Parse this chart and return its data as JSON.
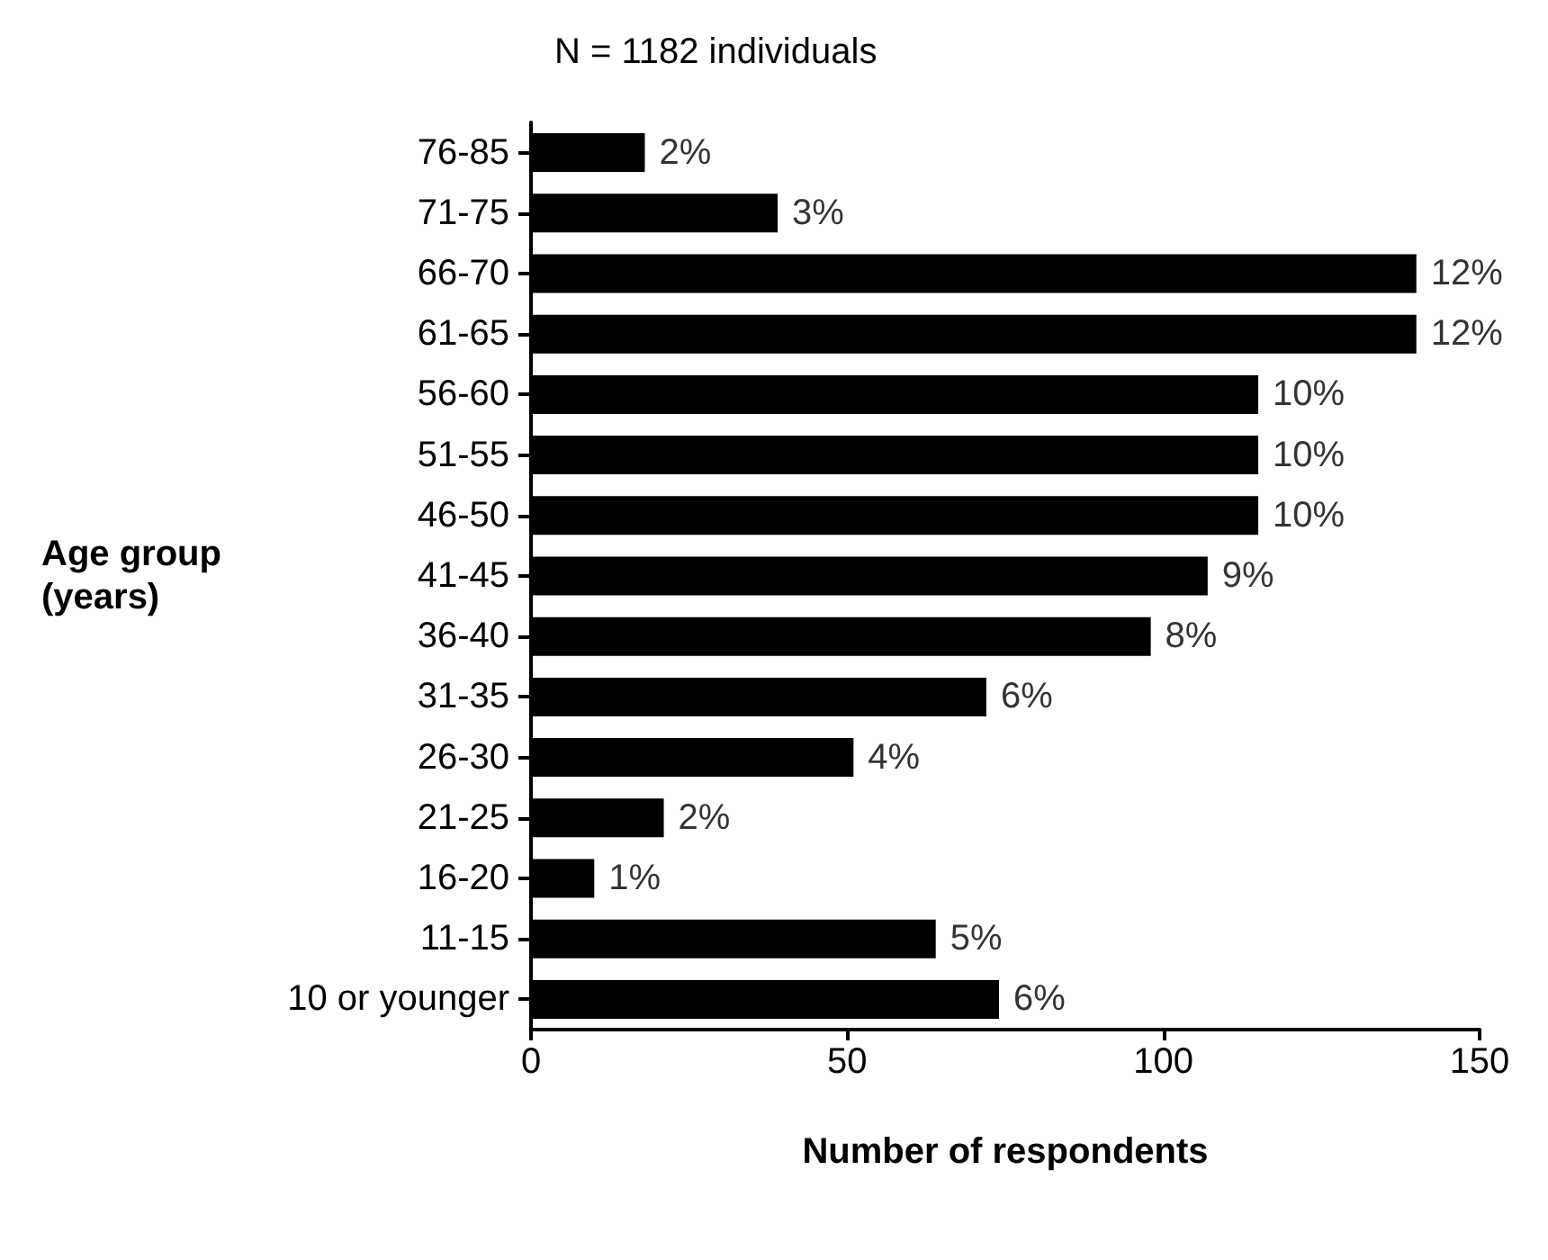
{
  "chart_data": {
    "type": "bar",
    "orientation": "horizontal",
    "title": "N = 1182 individuals",
    "xlabel": "Number of respondents",
    "ylabel": "Age group\n(years)",
    "categories": [
      "76-85",
      "71-75",
      "66-70",
      "61-65",
      "56-60",
      "51-55",
      "46-50",
      "41-45",
      "36-40",
      "31-35",
      "26-30",
      "21-25",
      "16-20",
      "11-15",
      "10 or younger"
    ],
    "values": [
      18,
      39,
      140,
      140,
      115,
      115,
      115,
      107,
      98,
      72,
      51,
      21,
      10,
      64,
      74
    ],
    "annotations": [
      {
        "text": "2%",
        "x": 18,
        "y": "76-85"
      },
      {
        "text": "3%",
        "x": 39,
        "y": "71-75"
      },
      {
        "text": "12%",
        "x": 140,
        "y": "66-70"
      },
      {
        "text": "12%",
        "x": 140,
        "y": "61-65"
      },
      {
        "text": "10%",
        "x": 115,
        "y": "56-60"
      },
      {
        "text": "10%",
        "x": 115,
        "y": "51-55"
      },
      {
        "text": "10%",
        "x": 115,
        "y": "46-50"
      },
      {
        "text": "9%",
        "x": 107,
        "y": "41-45"
      },
      {
        "text": "8%",
        "x": 98,
        "y": "36-40"
      },
      {
        "text": "6%",
        "x": 72,
        "y": "31-35"
      },
      {
        "text": "4%",
        "x": 51,
        "y": "26-30"
      },
      {
        "text": "2%",
        "x": 21,
        "y": "21-25"
      },
      {
        "text": "1%",
        "x": 10,
        "y": "16-20"
      },
      {
        "text": "5%",
        "x": 64,
        "y": "11-15"
      },
      {
        "text": "6%",
        "x": 74,
        "y": "10 or younger"
      }
    ],
    "color": "#000000",
    "xlim": [
      0,
      150
    ],
    "xticks": [
      0,
      50,
      100,
      150
    ],
    "grid": false
  }
}
